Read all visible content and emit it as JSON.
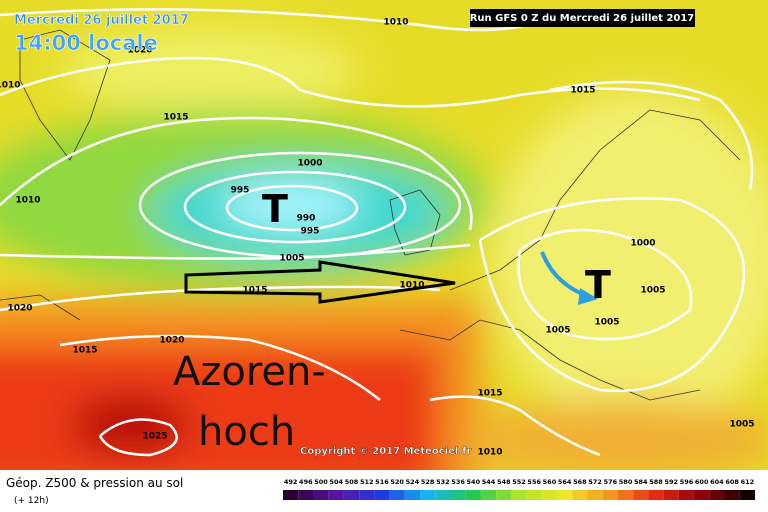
{
  "header": {
    "date": "Mercredi 26 juillet 2017",
    "time": "14:00 locale",
    "run": "Run GFS 0 Z du Mercredi 26 juillet 2017"
  },
  "isobar_labels": [
    1010,
    1020,
    1010,
    1015,
    1000,
    995,
    990,
    995,
    1010,
    1005,
    1015,
    1010,
    1020,
    1020,
    1015,
    1025,
    1010,
    1015,
    1015,
    1000,
    1005,
    1005,
    1005,
    1005
  ],
  "lows": [
    "T",
    "T"
  ],
  "annotation": [
    "Azoren-",
    "hoch"
  ],
  "copyright": "Copyright © 2017 Meteociel.fr",
  "legend": {
    "title": "Géop. Z500 & pression au sol",
    "lead": "(+ 12h)",
    "scale": [
      492,
      496,
      500,
      504,
      508,
      512,
      516,
      520,
      524,
      528,
      532,
      536,
      540,
      544,
      548,
      552,
      556,
      560,
      564,
      568,
      572,
      576,
      580,
      584,
      588,
      592,
      596,
      600,
      604,
      608,
      612
    ]
  }
}
